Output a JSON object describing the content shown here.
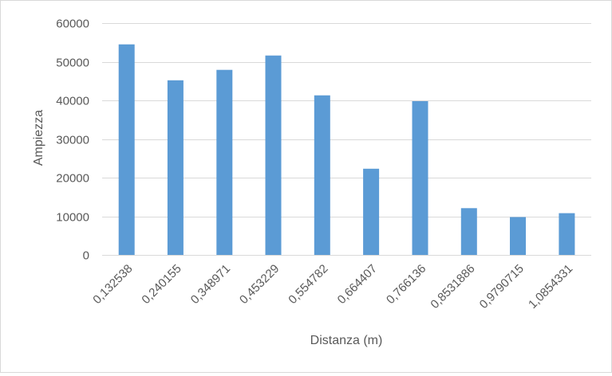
{
  "chart_data": {
    "type": "bar",
    "title": "",
    "xlabel": "Distanza (m)",
    "ylabel": "Ampiezza",
    "categories": [
      "0,132538",
      "0,240155",
      "0,348971",
      "0,453229",
      "0,554782",
      "0,664407",
      "0,766136",
      "0,8531886",
      "0,9790715",
      "1,0854331"
    ],
    "values": [
      54500,
      45200,
      47900,
      51600,
      41300,
      22300,
      39800,
      12100,
      9800,
      10800
    ],
    "ylim": [
      0,
      60000
    ],
    "yticks": [
      "0",
      "10000",
      "20000",
      "30000",
      "40000",
      "50000",
      "60000"
    ],
    "grid": "horizontal",
    "legend": "none",
    "colors": {
      "bar": "#5b9bd5",
      "grid": "#d9d9d9",
      "text": "#595959"
    }
  }
}
